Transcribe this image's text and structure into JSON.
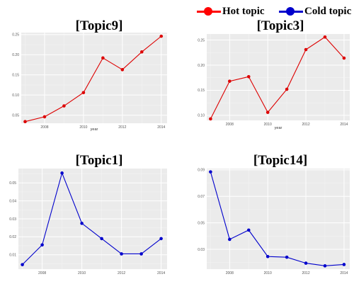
{
  "legend": {
    "hot_label": "Hot topic",
    "cold_label": "Cold topic",
    "hot_color": "#ff0000",
    "cold_color": "#0000cc"
  },
  "chart_data": [
    {
      "type": "line",
      "title": "[Topic9]",
      "xlabel": "year",
      "ylabel": "",
      "x": [
        2007,
        2008,
        2009,
        2010,
        2011,
        2012,
        2013,
        2014
      ],
      "series": [
        {
          "values": [
            0.034,
            0.046,
            0.073,
            0.106,
            0.192,
            0.163,
            0.207,
            0.246
          ],
          "color": "#dd0000"
        }
      ],
      "xlim": [
        2006.8,
        2014.3
      ],
      "ylim": [
        0.03,
        0.255
      ],
      "xticks": [
        2008,
        2010,
        2012,
        2014
      ],
      "xtick_labels": [
        "2008",
        "2010",
        "2012",
        "2014"
      ],
      "yticks": [
        0.05,
        0.1,
        0.15,
        0.2,
        0.25
      ],
      "ytick_labels": [
        "0.05",
        "0.10",
        "0.15",
        "0.20",
        "0.25"
      ],
      "grid": true
    },
    {
      "type": "line",
      "title": "[Topic3]",
      "xlabel": "year",
      "ylabel": "",
      "x": [
        2007,
        2008,
        2009,
        2010,
        2011,
        2012,
        2013,
        2014
      ],
      "series": [
        {
          "values": [
            0.093,
            0.168,
            0.177,
            0.106,
            0.152,
            0.231,
            0.256,
            0.214
          ],
          "color": "#dd0000"
        }
      ],
      "xlim": [
        2006.8,
        2014.3
      ],
      "ylim": [
        0.09,
        0.262
      ],
      "xticks": [
        2008,
        2010,
        2012,
        2014
      ],
      "xtick_labels": [
        "2008",
        "2010",
        "2012",
        "2014"
      ],
      "yticks": [
        0.1,
        0.15,
        0.2,
        0.25
      ],
      "ytick_labels": [
        "0.10",
        "0.15",
        "0.20",
        "0.25"
      ],
      "grid": true
    },
    {
      "type": "line",
      "title": "[Topic1]",
      "xlabel": "",
      "ylabel": "",
      "x": [
        2007,
        2008,
        2009,
        2010,
        2011,
        2012,
        2013,
        2014
      ],
      "series": [
        {
          "values": [
            0.0045,
            0.0155,
            0.0555,
            0.0275,
            0.019,
            0.0105,
            0.0105,
            0.019
          ],
          "color": "#0000cc"
        }
      ],
      "xlim": [
        2006.8,
        2014.3
      ],
      "ylim": [
        0.002,
        0.058
      ],
      "xticks": [
        2008,
        2010,
        2012,
        2014
      ],
      "xtick_labels": [
        "2008",
        "2010",
        "2012",
        "2014"
      ],
      "yticks": [
        0.01,
        0.02,
        0.03,
        0.04,
        0.05
      ],
      "ytick_labels": [
        "0.01",
        "0.02",
        "0.03",
        "0.04",
        "0.05"
      ],
      "grid": true
    },
    {
      "type": "line",
      "title": "[Topic14]",
      "xlabel": "",
      "ylabel": "",
      "x": [
        2007,
        2008,
        2009,
        2010,
        2011,
        2012,
        2013,
        2014
      ],
      "series": [
        {
          "values": [
            0.0885,
            0.0375,
            0.0445,
            0.0245,
            0.024,
            0.0195,
            0.0175,
            0.0185
          ],
          "color": "#0000cc"
        }
      ],
      "xlim": [
        2006.8,
        2014.3
      ],
      "ylim": [
        0.015,
        0.091
      ],
      "xticks": [
        2008,
        2010,
        2012,
        2014
      ],
      "xtick_labels": [
        "2008",
        "2010",
        "2012",
        "2014"
      ],
      "yticks": [
        0.03,
        0.05,
        0.07,
        0.09
      ],
      "ytick_labels": [
        "0.03",
        "0.05",
        "0.07",
        "0.09"
      ],
      "grid": true
    }
  ]
}
